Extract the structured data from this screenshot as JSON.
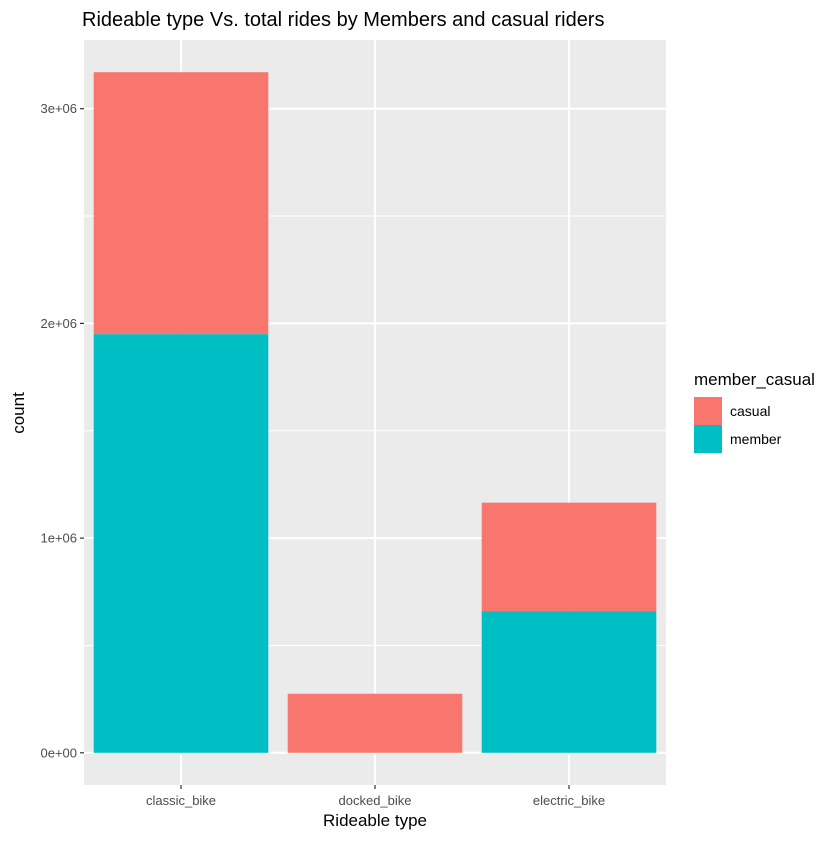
{
  "chart_data": {
    "type": "bar",
    "title": "Rideable type Vs. total rides by Members and casual riders",
    "xlabel": "Rideable type",
    "ylabel": "count",
    "categories": [
      "classic_bike",
      "docked_bike",
      "electric_bike"
    ],
    "series": [
      {
        "name": "member",
        "values": [
          1950000,
          0,
          660000
        ],
        "color": "#00BFC4"
      },
      {
        "name": "casual",
        "values": [
          1220000,
          275000,
          505000
        ],
        "color": "#F8766D"
      }
    ],
    "stacked": true,
    "ylim": [
      -150000,
      3320000
    ],
    "yticks": [
      {
        "value": 0,
        "label": "0e+00"
      },
      {
        "value": 1000000,
        "label": "1e+06"
      },
      {
        "value": 2000000,
        "label": "2e+06"
      },
      {
        "value": 3000000,
        "label": "3e+06"
      }
    ],
    "y_minor_ticks": [
      500000,
      1500000,
      2500000
    ],
    "grid": true,
    "legend": {
      "title": "member_casual",
      "position": "right",
      "items": [
        {
          "name": "casual",
          "color": "#F8766D"
        },
        {
          "name": "member",
          "color": "#00BFC4"
        }
      ]
    },
    "panel_background": "#EBEBEB",
    "grid_color": "#FFFFFF"
  }
}
